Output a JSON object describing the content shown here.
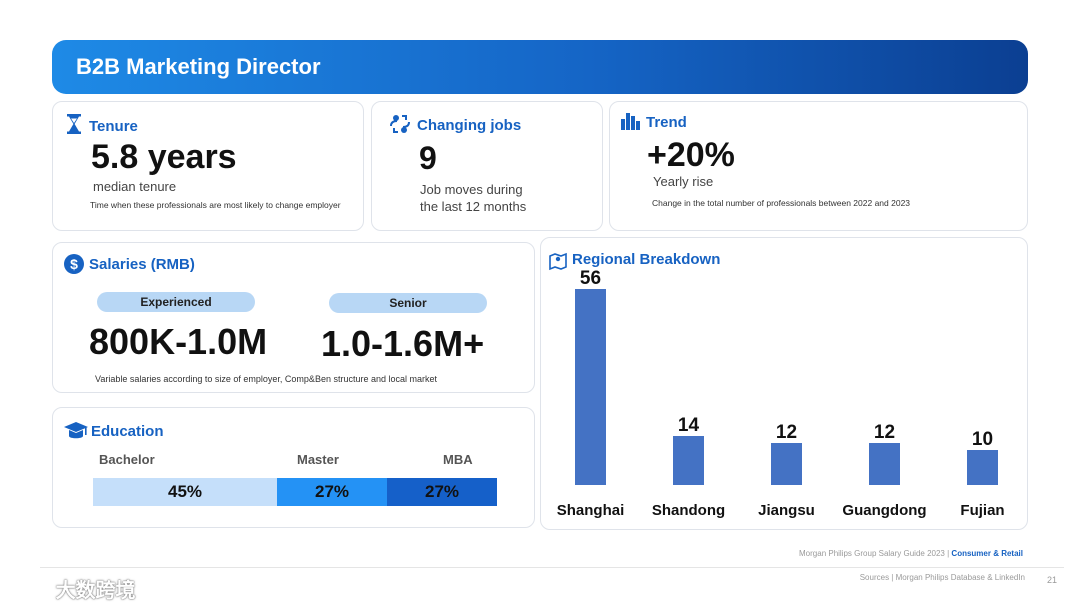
{
  "header": {
    "title": "B2B Marketing Director"
  },
  "tenure": {
    "title": "Tenure",
    "value": "5.8 years",
    "label": "median tenure",
    "note": "Time when these professionals are most likely to  change employer"
  },
  "changing_jobs": {
    "title": "Changing jobs",
    "value": "9",
    "label_line1": "Job moves during",
    "label_line2": "the last 12 months"
  },
  "trend": {
    "title": "Trend",
    "value": "+20%",
    "label": "Yearly rise",
    "note": "Change in the total number of professionals between 2022 and 2023"
  },
  "salaries": {
    "title": "Salaries (RMB)",
    "experienced_label": "Experienced",
    "experienced_value": "800K-1.0M",
    "senior_label": "Senior",
    "senior_value": "1.0-1.6M+",
    "note": "Variable salaries according to size of employer, Comp&Ben structure and local market"
  },
  "education": {
    "title": "Education",
    "items": [
      {
        "label": "Bachelor",
        "value": "45%",
        "percent": 45,
        "color": "#c5dffa"
      },
      {
        "label": "Master",
        "value": "27%",
        "percent": 27,
        "color": "#2492f5"
      },
      {
        "label": "MBA",
        "value": "27%",
        "percent": 27,
        "color": "#1560c9"
      }
    ]
  },
  "chart_data": {
    "type": "bar",
    "title": "Regional Breakdown",
    "categories": [
      "Shanghai",
      "Shandong",
      "Jiangsu",
      "Guangdong",
      "Fujian"
    ],
    "values": [
      56,
      14,
      12,
      12,
      10
    ],
    "value_labels": [
      "56",
      "14",
      "12",
      "12",
      "10"
    ],
    "bar_color": "#4472c4",
    "xlabel": "",
    "ylabel": "",
    "ylim": [
      0,
      56
    ],
    "grid": false
  },
  "footer": {
    "guide": "Morgan Philips Group Salary Guide 2023 |",
    "section": "Consumer & Retail",
    "sources": "Sources | Morgan Philips Database & LinkedIn",
    "page": "21"
  },
  "watermark": {
    "text": "大数跨境"
  }
}
